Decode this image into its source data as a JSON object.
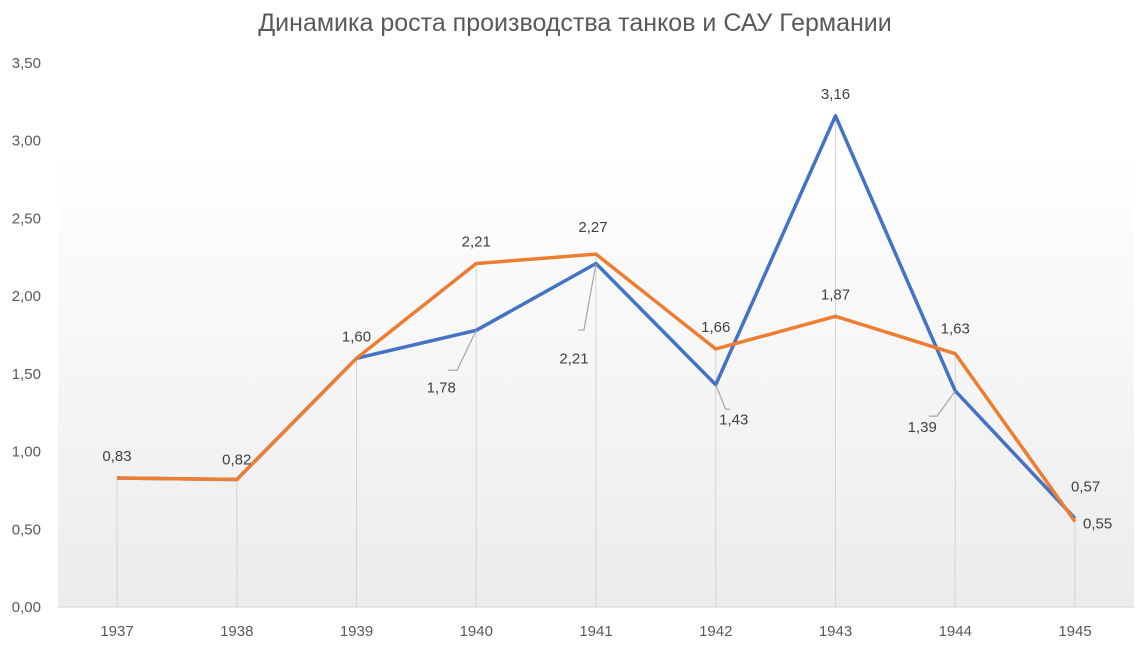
{
  "chart_data": {
    "type": "line",
    "title": "Динамика роста производства танков и САУ Германии",
    "categories": [
      "1937",
      "1938",
      "1939",
      "1940",
      "1941",
      "1942",
      "1943",
      "1944",
      "1945"
    ],
    "series": [
      {
        "color": "#4472C4",
        "values": [
          0.83,
          0.82,
          1.6,
          1.78,
          2.21,
          1.43,
          3.16,
          1.39,
          0.57
        ],
        "labels": [
          "0,83",
          "0,82",
          "1,60",
          "1,78",
          "2,21",
          "1,43",
          "3,16",
          "1,39",
          "0,57"
        ]
      },
      {
        "color": "#ED7D31",
        "values": [
          0.83,
          0.82,
          1.6,
          2.21,
          2.27,
          1.66,
          1.87,
          1.63,
          0.55
        ],
        "labels": [
          "0,83",
          "0,82",
          "1,60",
          "2,21",
          "2,27",
          "1,66",
          "1,87",
          "1,63",
          "0,55"
        ]
      }
    ],
    "ylim": [
      0,
      3.5
    ],
    "yticks": [
      "0,00",
      "0,50",
      "1,00",
      "1,50",
      "2,00",
      "2,50",
      "3,00",
      "3,50"
    ],
    "grid": false,
    "drop_lines": true
  }
}
